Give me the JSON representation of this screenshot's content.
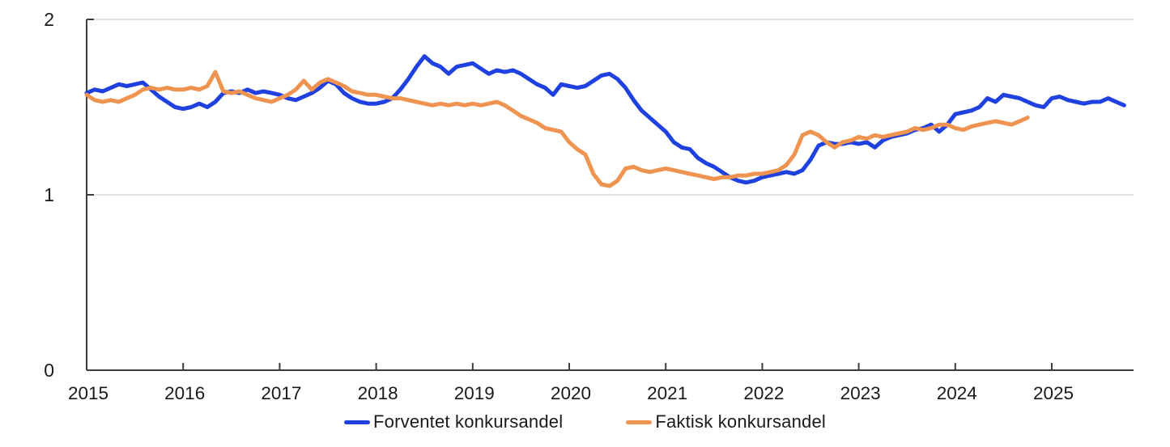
{
  "chart_data": {
    "type": "line",
    "title": "",
    "xlabel": "",
    "ylabel": "",
    "x_axis": {
      "tick_labels": [
        "2015",
        "2016",
        "2017",
        "2018",
        "2019",
        "2020",
        "2021",
        "2022",
        "2023",
        "2024",
        "2025"
      ],
      "start_year": 2015,
      "end": 2025.85,
      "frequency": "monthly"
    },
    "y_axis": {
      "tick_labels": [
        "0",
        "1",
        "2"
      ],
      "ticks": [
        0,
        1,
        2
      ],
      "ylim": [
        0,
        2
      ],
      "gridlines_at": [
        1,
        2
      ]
    },
    "legend_position": "bottom-center",
    "colors": {
      "axis": "#3d3d3d",
      "gridline": "#dcdcdc",
      "tick_label": "#1a1a1a"
    },
    "series": [
      {
        "name": "Forventet konkursandel",
        "color": "#1f41e0",
        "start": "2015-01",
        "end": "2025-10",
        "values": [
          1.58,
          1.6,
          1.59,
          1.61,
          1.63,
          1.62,
          1.63,
          1.64,
          1.6,
          1.56,
          1.53,
          1.5,
          1.49,
          1.5,
          1.52,
          1.5,
          1.53,
          1.58,
          1.59,
          1.58,
          1.6,
          1.58,
          1.59,
          1.58,
          1.57,
          1.55,
          1.54,
          1.56,
          1.58,
          1.61,
          1.65,
          1.63,
          1.58,
          1.55,
          1.53,
          1.52,
          1.52,
          1.53,
          1.55,
          1.6,
          1.66,
          1.73,
          1.79,
          1.75,
          1.73,
          1.69,
          1.73,
          1.74,
          1.75,
          1.72,
          1.69,
          1.71,
          1.7,
          1.71,
          1.69,
          1.66,
          1.63,
          1.61,
          1.57,
          1.63,
          1.62,
          1.61,
          1.62,
          1.65,
          1.68,
          1.69,
          1.66,
          1.61,
          1.54,
          1.48,
          1.44,
          1.4,
          1.36,
          1.3,
          1.27,
          1.26,
          1.21,
          1.18,
          1.16,
          1.13,
          1.1,
          1.08,
          1.07,
          1.08,
          1.1,
          1.11,
          1.12,
          1.13,
          1.12,
          1.14,
          1.2,
          1.28,
          1.3,
          1.29,
          1.29,
          1.3,
          1.29,
          1.3,
          1.27,
          1.31,
          1.33,
          1.34,
          1.35,
          1.37,
          1.38,
          1.4,
          1.36,
          1.4,
          1.46,
          1.47,
          1.48,
          1.5,
          1.55,
          1.53,
          1.57,
          1.56,
          1.55,
          1.53,
          1.51,
          1.5,
          1.55,
          1.56,
          1.54,
          1.53,
          1.52,
          1.53,
          1.53,
          1.55,
          1.53,
          1.51
        ]
      },
      {
        "name": "Faktisk konkursandel",
        "color": "#ee9450",
        "start": "2015-01",
        "end": "2024-10",
        "values": [
          1.57,
          1.54,
          1.53,
          1.54,
          1.53,
          1.55,
          1.57,
          1.6,
          1.61,
          1.6,
          1.61,
          1.6,
          1.6,
          1.61,
          1.6,
          1.62,
          1.7,
          1.59,
          1.58,
          1.59,
          1.57,
          1.55,
          1.54,
          1.53,
          1.55,
          1.57,
          1.6,
          1.65,
          1.6,
          1.64,
          1.66,
          1.64,
          1.62,
          1.59,
          1.58,
          1.57,
          1.57,
          1.56,
          1.55,
          1.55,
          1.54,
          1.53,
          1.52,
          1.51,
          1.52,
          1.51,
          1.52,
          1.51,
          1.52,
          1.51,
          1.52,
          1.53,
          1.51,
          1.48,
          1.45,
          1.43,
          1.41,
          1.38,
          1.37,
          1.36,
          1.3,
          1.26,
          1.23,
          1.12,
          1.06,
          1.05,
          1.08,
          1.15,
          1.16,
          1.14,
          1.13,
          1.14,
          1.15,
          1.14,
          1.13,
          1.12,
          1.11,
          1.1,
          1.09,
          1.1,
          1.1,
          1.11,
          1.11,
          1.12,
          1.12,
          1.13,
          1.14,
          1.17,
          1.23,
          1.34,
          1.36,
          1.34,
          1.3,
          1.27,
          1.3,
          1.31,
          1.33,
          1.32,
          1.34,
          1.33,
          1.34,
          1.35,
          1.36,
          1.38,
          1.37,
          1.38,
          1.4,
          1.4,
          1.38,
          1.37,
          1.39,
          1.4,
          1.41,
          1.42,
          1.41,
          1.4,
          1.42,
          1.44
        ]
      }
    ]
  },
  "legend": {
    "items": [
      {
        "label": "Forventet konkursandel"
      },
      {
        "label": "Faktisk konkursandel"
      }
    ]
  }
}
